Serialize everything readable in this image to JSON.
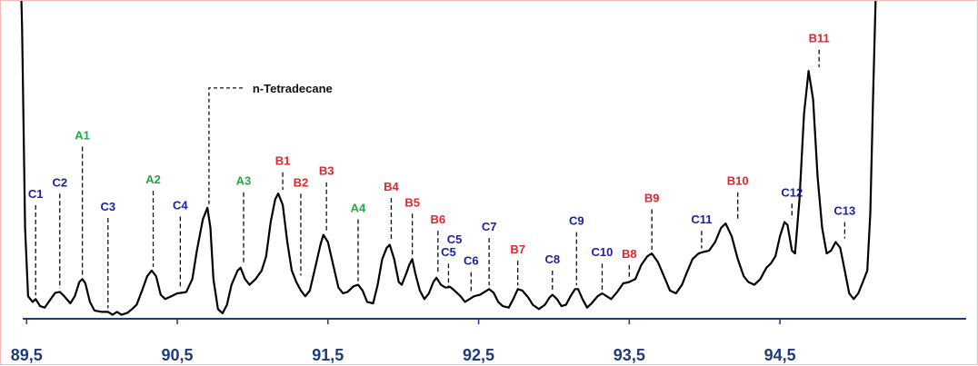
{
  "chart_data": {
    "type": "line",
    "xlim": [
      89.45,
      95.7
    ],
    "ylim": [
      0,
      100
    ],
    "x_ticks": [
      "89,5",
      "90,5",
      "91,5",
      "92,5",
      "93,5",
      "94,5"
    ],
    "x_tick_values": [
      89.5,
      90.5,
      91.5,
      92.5,
      93.5,
      94.5
    ],
    "colors": {
      "A": "#22a845",
      "B": "#e0262c",
      "C": "#1c1fa8",
      "line": "#000000",
      "axis": "#1f3b78"
    },
    "peaks": [
      {
        "label": "C1",
        "group": "C",
        "x": 89.56,
        "y": 5.0,
        "label_y": 40.5
      },
      {
        "label": "C2",
        "group": "C",
        "x": 89.72,
        "y": 7.5,
        "label_y": 44.5
      },
      {
        "label": "A1",
        "group": "A",
        "x": 89.87,
        "y": 12.0,
        "label_y": 61.0
      },
      {
        "label": "C3",
        "group": "C",
        "x": 90.04,
        "y": 0.5,
        "label_y": 36.0
      },
      {
        "label": "A2",
        "group": "A",
        "x": 90.34,
        "y": 15.0,
        "label_y": 45.5
      },
      {
        "label": "C4",
        "group": "C",
        "x": 90.52,
        "y": 7.5,
        "label_y": 36.5
      },
      {
        "label": "n-Tetradecane",
        "group": "N",
        "x": 90.71,
        "y": 37.0,
        "label_y": 79.0
      },
      {
        "label": "A3",
        "group": "A",
        "x": 90.94,
        "y": 16.0,
        "label_y": 45.0
      },
      {
        "label": "B1",
        "group": "B",
        "x": 91.2,
        "y": 42.0,
        "label_y": 52.0
      },
      {
        "label": "B2",
        "group": "B",
        "x": 91.32,
        "y": 12.0,
        "label_y": 44.5
      },
      {
        "label": "B3",
        "group": "B",
        "x": 91.49,
        "y": 27.5,
        "label_y": 48.5
      },
      {
        "label": "A4",
        "group": "A",
        "x": 91.7,
        "y": 10.0,
        "label_y": 35.5
      },
      {
        "label": "B4",
        "group": "B",
        "x": 91.92,
        "y": 24.0,
        "label_y": 43.0
      },
      {
        "label": "B5",
        "group": "B",
        "x": 92.06,
        "y": 19.0,
        "label_y": 37.5
      },
      {
        "label": "B6",
        "group": "B",
        "x": 92.23,
        "y": 12.5,
        "label_y": 31.5
      },
      {
        "label": "C5",
        "group": "C",
        "x": 92.3,
        "y": 7.5,
        "label_y": 20.0
      },
      {
        "label": "C6",
        "group": "C",
        "x": 92.45,
        "y": 6.5,
        "label_y": 17.0
      },
      {
        "label": "C7",
        "group": "C",
        "x": 92.57,
        "y": 8.5,
        "label_y": 29.0
      },
      {
        "label": "B7",
        "group": "B",
        "x": 92.76,
        "y": 8.5,
        "label_y": 21.0
      },
      {
        "label": "C8",
        "group": "C",
        "x": 92.99,
        "y": 6.5,
        "label_y": 17.5
      },
      {
        "label": "C9",
        "group": "C",
        "x": 93.15,
        "y": 8.5,
        "label_y": 31.0
      },
      {
        "label": "C10",
        "group": "C",
        "x": 93.32,
        "y": 7.0,
        "label_y": 20.0
      },
      {
        "label": "B8",
        "group": "B",
        "x": 93.5,
        "y": 11.0,
        "label_y": 19.5
      },
      {
        "label": "B9",
        "group": "B",
        "x": 93.65,
        "y": 21.0,
        "label_y": 39.0
      },
      {
        "label": "C11",
        "group": "C",
        "x": 93.98,
        "y": 21.5,
        "label_y": 31.5
      },
      {
        "label": "B10",
        "group": "B",
        "x": 94.22,
        "y": 31.5,
        "label_y": 45.0
      },
      {
        "label": "C12",
        "group": "C",
        "x": 94.58,
        "y": 32.0,
        "label_y": 41.0
      },
      {
        "label": "B11",
        "group": "B",
        "x": 94.76,
        "y": 85.0,
        "label_y": 95.0
      },
      {
        "label": "C13",
        "group": "C",
        "x": 94.93,
        "y": 25.0,
        "label_y": 34.5
      }
    ],
    "annotations": [
      {
        "label": "C5",
        "group": "C",
        "x": 92.34,
        "y": 24.5,
        "size": "large"
      }
    ],
    "trace": [
      [
        89.46,
        120
      ],
      [
        89.47,
        100
      ],
      [
        89.49,
        30
      ],
      [
        89.51,
        6
      ],
      [
        89.54,
        4
      ],
      [
        89.56,
        5
      ],
      [
        89.59,
        2.5
      ],
      [
        89.62,
        2
      ],
      [
        89.66,
        5
      ],
      [
        89.69,
        7.2
      ],
      [
        89.72,
        7.5
      ],
      [
        89.75,
        6
      ],
      [
        89.79,
        3.5
      ],
      [
        89.82,
        6
      ],
      [
        89.85,
        11
      ],
      [
        89.87,
        12
      ],
      [
        89.89,
        10.5
      ],
      [
        89.92,
        4
      ],
      [
        89.95,
        1
      ],
      [
        90.0,
        0.5
      ],
      [
        90.04,
        0.5
      ],
      [
        90.07,
        -0.5
      ],
      [
        90.1,
        0.5
      ],
      [
        90.13,
        -0.5
      ],
      [
        90.17,
        0.2
      ],
      [
        90.2,
        1.5
      ],
      [
        90.23,
        3
      ],
      [
        90.27,
        8.5
      ],
      [
        90.3,
        13
      ],
      [
        90.33,
        15
      ],
      [
        90.36,
        13
      ],
      [
        90.39,
        6.5
      ],
      [
        90.42,
        5
      ],
      [
        90.46,
        6
      ],
      [
        90.5,
        7
      ],
      [
        90.53,
        7.2
      ],
      [
        90.56,
        7.5
      ],
      [
        90.6,
        12
      ],
      [
        90.63,
        22
      ],
      [
        90.67,
        33
      ],
      [
        90.7,
        37
      ],
      [
        90.72,
        30
      ],
      [
        90.74,
        12
      ],
      [
        90.77,
        1.5
      ],
      [
        90.8,
        0
      ],
      [
        90.83,
        3
      ],
      [
        90.86,
        10
      ],
      [
        90.9,
        15
      ],
      [
        90.92,
        16
      ],
      [
        90.95,
        12
      ],
      [
        90.98,
        10
      ],
      [
        91.02,
        12
      ],
      [
        91.06,
        15
      ],
      [
        91.09,
        20
      ],
      [
        91.12,
        32
      ],
      [
        91.15,
        40
      ],
      [
        91.17,
        42
      ],
      [
        91.2,
        38
      ],
      [
        91.23,
        25
      ],
      [
        91.26,
        15
      ],
      [
        91.29,
        11
      ],
      [
        91.32,
        8
      ],
      [
        91.35,
        6
      ],
      [
        91.38,
        8
      ],
      [
        91.42,
        17
      ],
      [
        91.45,
        24
      ],
      [
        91.47,
        27.5
      ],
      [
        91.5,
        25
      ],
      [
        91.53,
        18
      ],
      [
        91.57,
        9
      ],
      [
        91.6,
        7
      ],
      [
        91.63,
        7.5
      ],
      [
        91.67,
        9.5
      ],
      [
        91.7,
        10
      ],
      [
        91.73,
        8
      ],
      [
        91.76,
        4
      ],
      [
        91.8,
        3.5
      ],
      [
        91.83,
        10
      ],
      [
        91.86,
        19
      ],
      [
        91.89,
        23
      ],
      [
        91.91,
        24
      ],
      [
        91.94,
        19
      ],
      [
        91.97,
        11
      ],
      [
        91.99,
        10
      ],
      [
        92.02,
        14
      ],
      [
        92.04,
        17
      ],
      [
        92.06,
        19
      ],
      [
        92.08,
        14
      ],
      [
        92.11,
        8
      ],
      [
        92.14,
        5
      ],
      [
        92.17,
        7
      ],
      [
        92.2,
        11
      ],
      [
        92.22,
        12.5
      ],
      [
        92.25,
        10
      ],
      [
        92.28,
        9
      ],
      [
        92.31,
        9.3
      ],
      [
        92.34,
        8
      ],
      [
        92.38,
        6
      ],
      [
        92.41,
        4
      ],
      [
        92.44,
        5
      ],
      [
        92.47,
        6
      ],
      [
        92.51,
        6.5
      ],
      [
        92.54,
        7.5
      ],
      [
        92.57,
        8.5
      ],
      [
        92.6,
        7.2
      ],
      [
        92.63,
        4
      ],
      [
        92.66,
        2.5
      ],
      [
        92.7,
        2
      ],
      [
        92.73,
        5
      ],
      [
        92.76,
        8.5
      ],
      [
        92.79,
        8
      ],
      [
        92.83,
        5.5
      ],
      [
        92.86,
        3
      ],
      [
        92.9,
        1.5
      ],
      [
        92.94,
        3
      ],
      [
        92.97,
        5.5
      ],
      [
        92.99,
        6.5
      ],
      [
        93.02,
        5
      ],
      [
        93.05,
        2.5
      ],
      [
        93.08,
        3
      ],
      [
        93.11,
        6
      ],
      [
        93.14,
        8.5
      ],
      [
        93.16,
        8.5
      ],
      [
        93.19,
        5
      ],
      [
        93.22,
        2
      ],
      [
        93.25,
        3.5
      ],
      [
        93.29,
        6
      ],
      [
        93.32,
        7
      ],
      [
        93.35,
        6
      ],
      [
        93.38,
        5
      ],
      [
        93.42,
        7.5
      ],
      [
        93.46,
        10.5
      ],
      [
        93.5,
        11
      ],
      [
        93.54,
        12
      ],
      [
        93.58,
        17
      ],
      [
        93.62,
        20
      ],
      [
        93.65,
        21
      ],
      [
        93.69,
        18
      ],
      [
        93.73,
        13
      ],
      [
        93.77,
        8
      ],
      [
        93.81,
        7
      ],
      [
        93.85,
        10
      ],
      [
        93.88,
        14
      ],
      [
        93.92,
        19
      ],
      [
        93.96,
        21
      ],
      [
        93.99,
        21.5
      ],
      [
        94.03,
        22
      ],
      [
        94.07,
        25
      ],
      [
        94.11,
        30
      ],
      [
        94.14,
        31.5
      ],
      [
        94.18,
        27
      ],
      [
        94.22,
        19
      ],
      [
        94.26,
        13
      ],
      [
        94.29,
        11
      ],
      [
        94.33,
        10
      ],
      [
        94.37,
        12
      ],
      [
        94.41,
        16
      ],
      [
        94.44,
        17.5
      ],
      [
        94.47,
        20
      ],
      [
        94.5,
        27
      ],
      [
        94.53,
        32
      ],
      [
        94.55,
        31
      ],
      [
        94.58,
        22
      ],
      [
        94.6,
        21
      ],
      [
        94.63,
        40
      ],
      [
        94.66,
        70
      ],
      [
        94.69,
        85
      ],
      [
        94.72,
        75
      ],
      [
        94.75,
        48
      ],
      [
        94.78,
        30
      ],
      [
        94.81,
        21
      ],
      [
        94.84,
        22
      ],
      [
        94.87,
        25
      ],
      [
        94.9,
        23
      ],
      [
        94.93,
        15
      ],
      [
        94.96,
        7
      ],
      [
        94.99,
        5
      ],
      [
        95.02,
        7
      ],
      [
        95.05,
        11
      ],
      [
        95.08,
        15
      ],
      [
        95.1,
        35
      ],
      [
        95.12,
        80
      ],
      [
        95.14,
        120
      ]
    ]
  }
}
